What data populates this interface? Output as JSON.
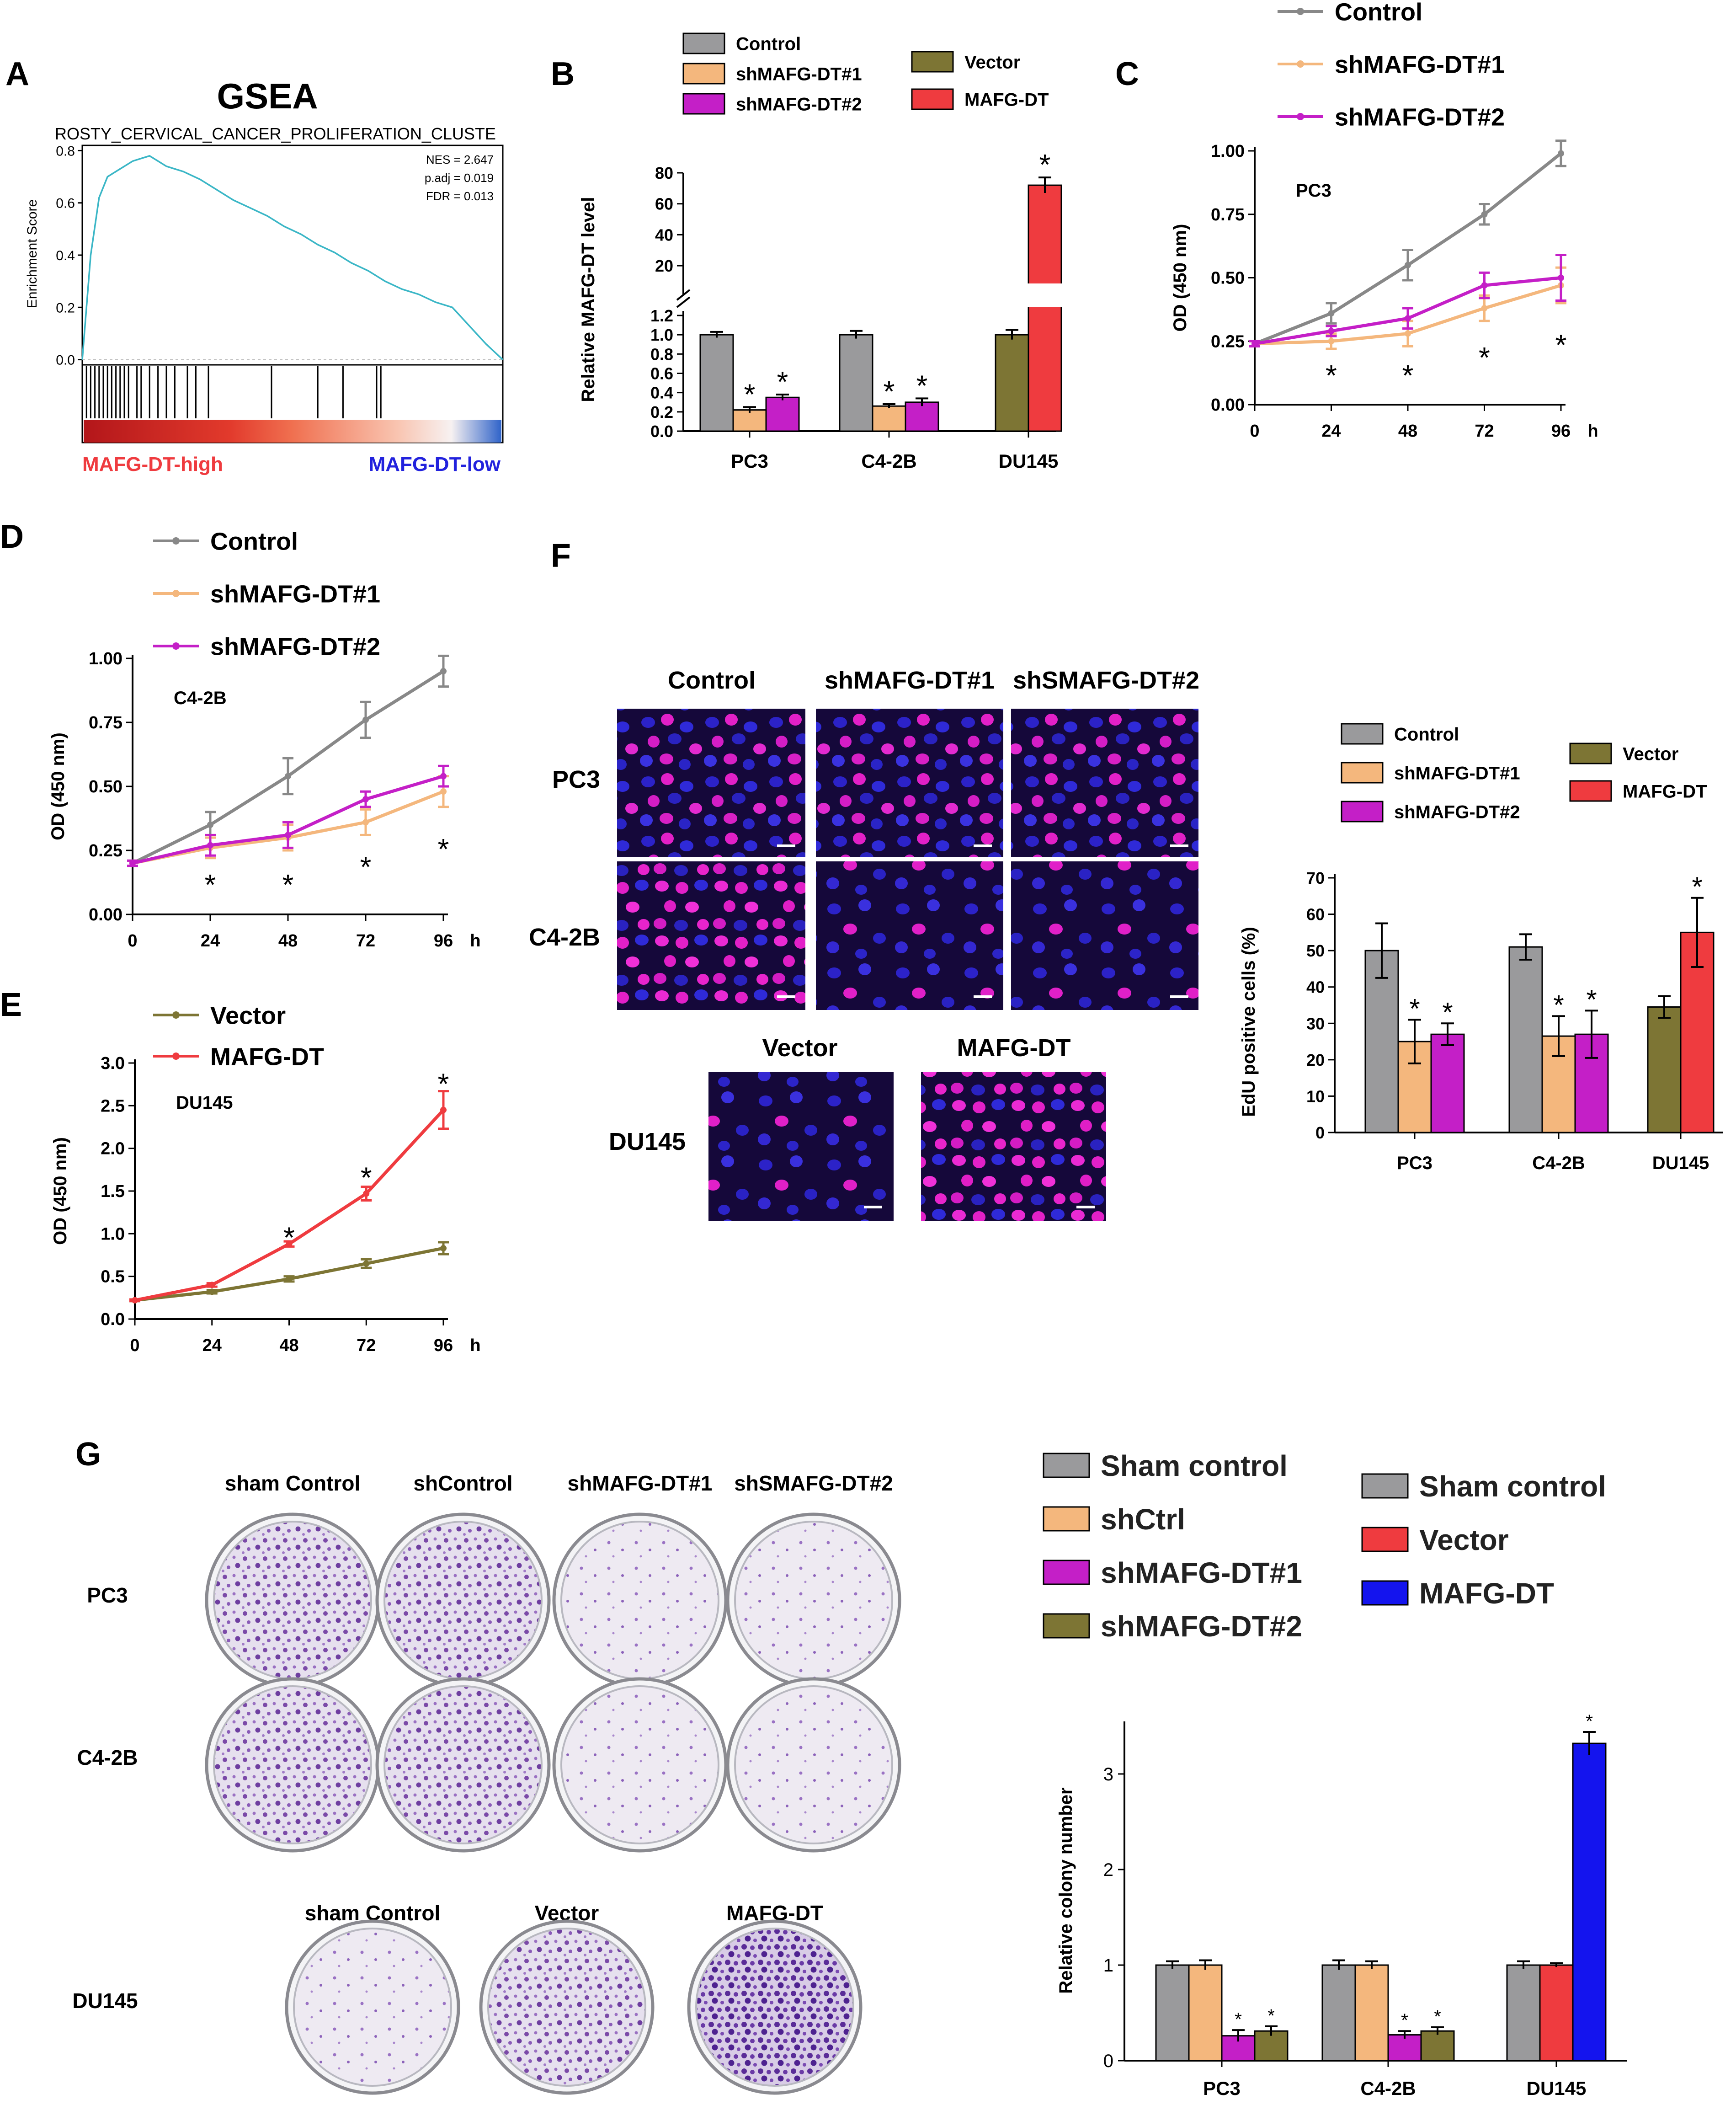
{
  "colors": {
    "gray": "#9a9a9c",
    "orange": "#f4b77d",
    "magenta": "#c41fc7",
    "olive": "#7d7534",
    "red": "#ef3b3f",
    "blue": "#1414ee",
    "teal": "#3ab6c6",
    "axis": "#000000"
  },
  "panel_labels": {
    "A": "A",
    "B": "B",
    "C": "C",
    "D": "D",
    "E": "E",
    "F": "F",
    "G": "G"
  },
  "chart_data": [
    {
      "id": "A",
      "type": "line",
      "title": "GSEA",
      "subtitle": "ROSTY_CERVICAL_CANCER_PROLIFERATION_CLUSTE",
      "ylabel": "Enrichment Score",
      "yticks": [
        "0.0",
        "0.2",
        "0.4",
        "0.6",
        "0.8"
      ],
      "ylim": [
        -0.02,
        0.82
      ],
      "stats": [
        "NES = 2.647",
        "p.adj = 0.019",
        "FDR = 0.013"
      ],
      "x": [
        0,
        2,
        4,
        6,
        8,
        10,
        12,
        14,
        16,
        18,
        20,
        22,
        24,
        28,
        32,
        36,
        40,
        44,
        48,
        52,
        56,
        60,
        64,
        68,
        72,
        76,
        80,
        84,
        88,
        92,
        96,
        100
      ],
      "values": [
        0,
        0.4,
        0.62,
        0.7,
        0.72,
        0.74,
        0.76,
        0.77,
        0.78,
        0.76,
        0.74,
        0.73,
        0.72,
        0.69,
        0.65,
        0.61,
        0.58,
        0.55,
        0.51,
        0.48,
        0.44,
        0.41,
        0.37,
        0.34,
        0.3,
        0.27,
        0.25,
        0.22,
        0.2,
        0.13,
        0.06,
        0.0
      ],
      "gene_hits": [
        1,
        2,
        3,
        4,
        5,
        6,
        7,
        8,
        9,
        10,
        11,
        13,
        14,
        16,
        18,
        20,
        22,
        25,
        27,
        30,
        45,
        56,
        62,
        70,
        71
      ],
      "low_label": "MAFG-DT-low",
      "high_label": "MAFG-DT-high"
    },
    {
      "id": "B",
      "type": "bar",
      "ylabel": "Relative MAFG-DT level",
      "categories": [
        "PC3",
        "C4-2B",
        "DU145"
      ],
      "yticks_lower": [
        "0.0",
        "0.2",
        "0.4",
        "0.6",
        "0.8",
        "1.0",
        "1.2"
      ],
      "yticks_upper": [
        "20",
        "40",
        "60",
        "80"
      ],
      "legend": [
        {
          "name": "Control",
          "color": "#9a9a9c"
        },
        {
          "name": "shMAFG-DT#1",
          "color": "#f4b77d"
        },
        {
          "name": "shMAFG-DT#2",
          "color": "#c41fc7"
        },
        {
          "name": "Vector",
          "color": "#7d7534"
        },
        {
          "name": "MAFG-DT",
          "color": "#ef3b3f"
        }
      ],
      "groups": [
        {
          "category": "PC3",
          "bars": [
            {
              "series": "Control",
              "value": 1.0,
              "err": 0.03,
              "star": ""
            },
            {
              "series": "shMAFG-DT#1",
              "value": 0.22,
              "err": 0.03,
              "star": "*"
            },
            {
              "series": "shMAFG-DT#2",
              "value": 0.35,
              "err": 0.03,
              "star": "*"
            }
          ]
        },
        {
          "category": "C4-2B",
          "bars": [
            {
              "series": "Control",
              "value": 1.0,
              "err": 0.04,
              "star": ""
            },
            {
              "series": "shMAFG-DT#1",
              "value": 0.26,
              "err": 0.02,
              "star": "*"
            },
            {
              "series": "shMAFG-DT#2",
              "value": 0.3,
              "err": 0.04,
              "star": "*"
            }
          ]
        },
        {
          "category": "DU145",
          "bars": [
            {
              "series": "Vector",
              "value": 1.0,
              "err": 0.05,
              "star": ""
            },
            {
              "series": "MAFG-DT",
              "value": 72,
              "err": 5,
              "star": "*"
            }
          ]
        }
      ]
    },
    {
      "id": "C",
      "type": "line",
      "annotation": "PC3",
      "xlabel": "h",
      "ylabel": "OD (450 nm)",
      "x": [
        0,
        24,
        48,
        72,
        96
      ],
      "xticks": [
        "0",
        "24",
        "48",
        "72",
        "96"
      ],
      "yticks": [
        "0.00",
        "0.25",
        "0.50",
        "0.75",
        "1.00"
      ],
      "ylim": [
        0,
        1.0
      ],
      "stars": [
        "",
        "*",
        "*",
        "*",
        "*"
      ],
      "star_values": [
        0,
        0.13,
        0.13,
        0.2,
        0.25
      ],
      "series": [
        {
          "name": "Control",
          "color": "#888888",
          "values": [
            0.24,
            0.36,
            0.55,
            0.75,
            0.99
          ],
          "err": [
            0.01,
            0.04,
            0.06,
            0.04,
            0.05
          ]
        },
        {
          "name": "shMAFG-DT#1",
          "color": "#f4b77d",
          "values": [
            0.24,
            0.25,
            0.28,
            0.38,
            0.47
          ],
          "err": [
            0.01,
            0.03,
            0.05,
            0.05,
            0.07
          ]
        },
        {
          "name": "shMAFG-DT#2",
          "color": "#c41fc7",
          "values": [
            0.24,
            0.29,
            0.34,
            0.47,
            0.5
          ],
          "err": [
            0.01,
            0.02,
            0.04,
            0.05,
            0.09
          ]
        }
      ]
    },
    {
      "id": "D",
      "type": "line",
      "annotation": "C4-2B",
      "xlabel": "h",
      "ylabel": "OD (450 nm)",
      "x": [
        0,
        24,
        48,
        72,
        96
      ],
      "xticks": [
        "0",
        "24",
        "48",
        "72",
        "96"
      ],
      "yticks": [
        "0.00",
        "0.25",
        "0.50",
        "0.75",
        "1.00"
      ],
      "ylim": [
        0,
        1.0
      ],
      "stars": [
        "",
        "*",
        "*",
        "*",
        "*"
      ],
      "star_values": [
        0,
        0.13,
        0.13,
        0.2,
        0.27
      ],
      "series": [
        {
          "name": "Control",
          "color": "#888888",
          "values": [
            0.2,
            0.35,
            0.54,
            0.76,
            0.95
          ],
          "err": [
            0.01,
            0.05,
            0.07,
            0.07,
            0.06
          ]
        },
        {
          "name": "shMAFG-DT#1",
          "color": "#f4b77d",
          "values": [
            0.2,
            0.26,
            0.3,
            0.36,
            0.48
          ],
          "err": [
            0.01,
            0.04,
            0.05,
            0.05,
            0.06
          ]
        },
        {
          "name": "shMAFG-DT#2",
          "color": "#c41fc7",
          "values": [
            0.2,
            0.27,
            0.31,
            0.45,
            0.54
          ],
          "err": [
            0.01,
            0.04,
            0.05,
            0.03,
            0.04
          ]
        }
      ]
    },
    {
      "id": "E",
      "type": "line",
      "annotation": "DU145",
      "xlabel": "h",
      "ylabel": "OD (450 nm)",
      "x": [
        0,
        24,
        48,
        72,
        96
      ],
      "xticks": [
        "0",
        "24",
        "48",
        "72",
        "96"
      ],
      "yticks": [
        "0.0",
        "0.5",
        "1.0",
        "1.5",
        "2.0",
        "2.5",
        "3.0"
      ],
      "ylim": [
        0,
        3.0
      ],
      "stars": [
        "",
        "",
        "*",
        "*",
        "*"
      ],
      "star_values": [
        0,
        0,
        1.0,
        1.7,
        2.8
      ],
      "series": [
        {
          "name": "Vector",
          "color": "#7d7534",
          "values": [
            0.22,
            0.32,
            0.47,
            0.65,
            0.83
          ],
          "err": [
            0.01,
            0.02,
            0.03,
            0.05,
            0.07
          ]
        },
        {
          "name": "MAFG-DT",
          "color": "#ef3b3f",
          "values": [
            0.22,
            0.4,
            0.88,
            1.47,
            2.45
          ],
          "err": [
            0.01,
            0.02,
            0.03,
            0.08,
            0.22
          ]
        }
      ]
    },
    {
      "id": "F",
      "type": "bar",
      "ylabel": "EdU positive cells (%)",
      "categories": [
        "PC3",
        "C4-2B",
        "DU145"
      ],
      "yticks": [
        "0",
        "10",
        "20",
        "30",
        "40",
        "50",
        "60",
        "70"
      ],
      "ylim": [
        0,
        70
      ],
      "legend": [
        {
          "name": "Control",
          "color": "#9a9a9c"
        },
        {
          "name": "shMAFG-DT#1",
          "color": "#f4b77d"
        },
        {
          "name": "shMAFG-DT#2",
          "color": "#c41fc7"
        },
        {
          "name": "Vector",
          "color": "#7d7534"
        },
        {
          "name": "MAFG-DT",
          "color": "#ef3b3f"
        }
      ],
      "groups": [
        {
          "category": "PC3",
          "bars": [
            {
              "series": "Control",
              "value": 50,
              "err": 7.5,
              "star": ""
            },
            {
              "series": "shMAFG-DT#1",
              "value": 25,
              "err": 6,
              "star": "*"
            },
            {
              "series": "shMAFG-DT#2",
              "value": 27,
              "err": 3,
              "star": "*"
            }
          ]
        },
        {
          "category": "C4-2B",
          "bars": [
            {
              "series": "Control",
              "value": 51,
              "err": 3.5,
              "star": ""
            },
            {
              "series": "shMAFG-DT#1",
              "value": 26.5,
              "err": 5.5,
              "star": "*"
            },
            {
              "series": "shMAFG-DT#2",
              "value": 27,
              "err": 6.5,
              "star": "*"
            }
          ]
        },
        {
          "category": "DU145",
          "bars": [
            {
              "series": "Vector",
              "value": 34.5,
              "err": 3,
              "star": ""
            },
            {
              "series": "MAFG-DT",
              "value": 55,
              "err": 9.5,
              "star": "*"
            }
          ]
        }
      ]
    },
    {
      "id": "G",
      "type": "bar",
      "ylabel": "Relative colony number",
      "categories": [
        "PC3",
        "C4-2B",
        "DU145"
      ],
      "yticks": [
        "0",
        "1",
        "2",
        "3"
      ],
      "ylim": [
        0,
        3.55
      ],
      "legend": [
        {
          "name": "Sham control",
          "color": "#9a9a9c"
        },
        {
          "name": "shCtrl",
          "color": "#f4b77d"
        },
        {
          "name": "shMAFG-DT#1",
          "color": "#c41fc7"
        },
        {
          "name": "shMAFG-DT#2",
          "color": "#7d7534"
        },
        {
          "name": "Sham control",
          "color": "#9a9a9c"
        },
        {
          "name": "Vector",
          "color": "#ef3b3f"
        },
        {
          "name": "MAFG-DT",
          "color": "#1414ee"
        }
      ],
      "groups": [
        {
          "category": "PC3",
          "bars": [
            {
              "series": "Sham control",
              "value": 1.0,
              "err": 0.04,
              "star": ""
            },
            {
              "series": "shCtrl",
              "value": 1.0,
              "err": 0.05,
              "star": ""
            },
            {
              "series": "shMAFG-DT#1",
              "value": 0.26,
              "err": 0.06,
              "star": "*"
            },
            {
              "series": "shMAFG-DT#2",
              "value": 0.31,
              "err": 0.05,
              "star": "*"
            }
          ]
        },
        {
          "category": "C4-2B",
          "bars": [
            {
              "series": "Sham control",
              "value": 1.0,
              "err": 0.05,
              "star": ""
            },
            {
              "series": "shCtrl",
              "value": 1.0,
              "err": 0.04,
              "star": ""
            },
            {
              "series": "shMAFG-DT#1",
              "value": 0.27,
              "err": 0.04,
              "star": "*"
            },
            {
              "series": "shMAFG-DT#2",
              "value": 0.31,
              "err": 0.04,
              "star": "*"
            }
          ]
        },
        {
          "category": "DU145",
          "bars": [
            {
              "series": "Sham control",
              "value": 1.0,
              "err": 0.04,
              "star": ""
            },
            {
              "series": "Vector",
              "value": 1.0,
              "err": 0.02,
              "star": ""
            },
            {
              "series": "MAFG-DT",
              "value": 3.32,
              "err": 0.12,
              "star": "*"
            }
          ]
        }
      ]
    }
  ],
  "panel_F": {
    "col_headers": [
      "Control",
      "shMAFG-DT#1",
      "shSMAFG-DT#2"
    ],
    "row_labels": [
      "PC3",
      "C4-2B"
    ],
    "du_headers": [
      "Vector",
      "MAFG-DT"
    ],
    "du_row": "DU145"
  },
  "panel_G": {
    "col_headers": [
      "sham Control",
      "shControl",
      "shMAFG-DT#1",
      "shSMAFG-DT#2"
    ],
    "row_labels": [
      "PC3",
      "C4-2B"
    ],
    "du_headers": [
      "sham Control",
      "Vector",
      "MAFG-DT"
    ],
    "du_row": "DU145"
  }
}
